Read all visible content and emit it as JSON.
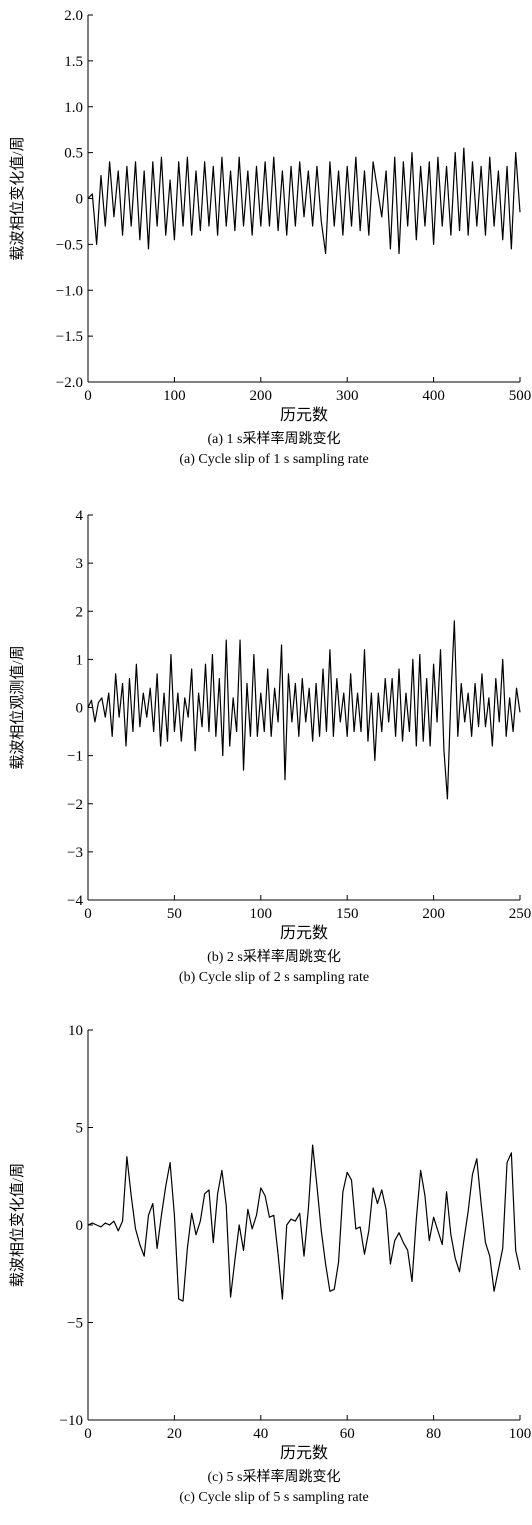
{
  "chart_data": [
    {
      "type": "line",
      "ylabel": "载波相位变化值/周",
      "xlabel": "历元数",
      "caption_cn": "(a) 1 s采样率周跳变化",
      "caption_en": "(a) Cycle slip of 1 s sampling rate",
      "xlim": [
        0,
        500
      ],
      "ylim": [
        -2,
        2
      ],
      "xticks": [
        0,
        100,
        200,
        300,
        400,
        500
      ],
      "yticks": [
        {
          "value": -2,
          "label": "−2.0"
        },
        {
          "value": -1.5,
          "label": "−1.5"
        },
        {
          "value": -1,
          "label": "−1.0"
        },
        {
          "value": -0.5,
          "label": "−0.5"
        },
        0,
        0.5,
        {
          "value": 1,
          "label": "1.0"
        },
        1.5,
        {
          "value": 2,
          "label": "2.0"
        }
      ],
      "x": [
        0,
        5,
        10,
        15,
        20,
        25,
        30,
        35,
        40,
        45,
        50,
        55,
        60,
        65,
        70,
        75,
        80,
        85,
        90,
        95,
        100,
        105,
        110,
        115,
        120,
        125,
        130,
        135,
        140,
        145,
        150,
        155,
        160,
        165,
        170,
        175,
        180,
        185,
        190,
        195,
        200,
        205,
        210,
        215,
        220,
        225,
        230,
        235,
        240,
        245,
        250,
        255,
        260,
        265,
        270,
        275,
        280,
        285,
        290,
        295,
        300,
        305,
        310,
        315,
        320,
        325,
        330,
        335,
        340,
        345,
        350,
        355,
        360,
        365,
        370,
        375,
        380,
        385,
        390,
        395,
        400,
        405,
        410,
        415,
        420,
        425,
        430,
        435,
        440,
        445,
        450,
        455,
        460,
        465,
        470,
        475,
        480,
        485,
        490,
        495,
        500
      ],
      "series": [
        {
          "color": "#000000",
          "values": [
            0,
            0.05,
            -0.5,
            0.25,
            -0.3,
            0.4,
            -0.2,
            0.3,
            -0.4,
            0.35,
            -0.3,
            0.4,
            -0.45,
            0.3,
            -0.55,
            0.4,
            -0.3,
            0.45,
            -0.4,
            0.2,
            -0.45,
            0.4,
            -0.3,
            0.45,
            -0.4,
            0.3,
            -0.35,
            0.4,
            -0.3,
            0.35,
            -0.4,
            0.45,
            -0.3,
            0.3,
            -0.35,
            0.45,
            -0.3,
            0.3,
            -0.4,
            0.35,
            -0.3,
            0.4,
            -0.3,
            0.45,
            -0.35,
            0.3,
            -0.4,
            0.35,
            -0.3,
            0.4,
            -0.2,
            0.3,
            -0.3,
            0.35,
            -0.25,
            -0.6,
            0.4,
            -0.3,
            0.3,
            -0.4,
            0.35,
            -0.3,
            0.45,
            -0.35,
            0.3,
            -0.4,
            0.4,
            0.1,
            -0.2,
            0.3,
            -0.55,
            0.45,
            -0.6,
            0.4,
            -0.3,
            0.5,
            -0.45,
            0.35,
            -0.3,
            0.4,
            -0.5,
            0.45,
            -0.3,
            0.35,
            -0.4,
            0.5,
            -0.35,
            0.55,
            -0.4,
            0.4,
            -0.3,
            0.35,
            -0.4,
            0.45,
            -0.3,
            0.3,
            -0.45,
            0.35,
            -0.55,
            0.5,
            -0.15
          ]
        }
      ]
    },
    {
      "type": "line",
      "ylabel": "载波相位观测值/周",
      "xlabel": "历元数",
      "caption_cn": "(b) 2 s采样率周跳变化",
      "caption_en": "(b) Cycle slip of 2 s sampling rate",
      "xlim": [
        0,
        250
      ],
      "ylim": [
        -4,
        4
      ],
      "xticks": [
        0,
        50,
        100,
        150,
        200,
        250
      ],
      "yticks": [
        {
          "value": -4,
          "label": "−4"
        },
        {
          "value": -3,
          "label": "−3"
        },
        {
          "value": -2,
          "label": "−2"
        },
        {
          "value": -1,
          "label": "−1"
        },
        0,
        1,
        2,
        3,
        4
      ],
      "x": [
        0,
        2,
        4,
        6,
        8,
        10,
        12,
        14,
        16,
        18,
        20,
        22,
        24,
        26,
        28,
        30,
        32,
        34,
        36,
        38,
        40,
        42,
        44,
        46,
        48,
        50,
        52,
        54,
        56,
        58,
        60,
        62,
        64,
        66,
        68,
        70,
        72,
        74,
        76,
        78,
        80,
        82,
        84,
        86,
        88,
        90,
        92,
        94,
        96,
        98,
        100,
        102,
        104,
        106,
        108,
        110,
        112,
        114,
        116,
        118,
        120,
        122,
        124,
        126,
        128,
        130,
        132,
        134,
        136,
        138,
        140,
        142,
        144,
        146,
        148,
        150,
        152,
        154,
        156,
        158,
        160,
        162,
        164,
        166,
        168,
        170,
        172,
        174,
        176,
        178,
        180,
        182,
        184,
        186,
        188,
        190,
        192,
        194,
        196,
        198,
        200,
        202,
        204,
        206,
        208,
        210,
        212,
        214,
        216,
        218,
        220,
        222,
        224,
        226,
        228,
        230,
        232,
        234,
        236,
        238,
        240,
        242,
        244,
        246,
        248,
        250
      ],
      "series": [
        {
          "color": "#000000",
          "values": [
            0,
            0.15,
            -0.3,
            0.1,
            0.2,
            -0.2,
            0.3,
            -0.6,
            0.7,
            -0.2,
            0.5,
            -0.8,
            0.6,
            -0.5,
            0.9,
            -0.4,
            0.3,
            -0.2,
            0.4,
            -0.5,
            0.7,
            -0.8,
            0.3,
            -0.7,
            1.1,
            -0.5,
            0.3,
            -0.7,
            0.2,
            -0.2,
            0.8,
            -0.9,
            0.3,
            -0.4,
            0.9,
            -0.5,
            1.1,
            -0.6,
            0.6,
            -1.0,
            1.4,
            -0.8,
            0.2,
            -0.5,
            1.4,
            -1.3,
            0.5,
            -0.6,
            1.1,
            -0.6,
            0.3,
            -0.5,
            0.8,
            -0.6,
            0.4,
            -0.3,
            1.3,
            -1.5,
            0.7,
            -0.3,
            0.5,
            -0.6,
            0.6,
            -0.3,
            0.4,
            -0.7,
            0.5,
            -0.6,
            0.8,
            -0.5,
            1.2,
            -0.6,
            0.6,
            -0.3,
            0.3,
            -0.6,
            0.7,
            -0.5,
            0.3,
            -0.5,
            1.2,
            -0.7,
            0.3,
            -1.1,
            0.3,
            -0.5,
            0.6,
            -0.3,
            0.6,
            -0.6,
            0.8,
            -0.7,
            0.3,
            -0.5,
            1.0,
            -0.8,
            1.1,
            -0.7,
            0.6,
            -0.8,
            0.9,
            -0.3,
            1.2,
            -0.9,
            -1.9,
            0.2,
            1.8,
            -0.6,
            0.5,
            -0.3,
            0.3,
            -0.6,
            0.5,
            -0.4,
            0.7,
            -0.4,
            0.2,
            -0.8,
            0.6,
            -0.3,
            1.0,
            -0.6,
            0.2,
            -0.5,
            0.4,
            -0.1
          ]
        }
      ]
    },
    {
      "type": "line",
      "ylabel": "载波相位变化值/周",
      "xlabel": "历元数",
      "caption_cn": "(c) 5 s采样率周跳变化",
      "caption_en": "(c) Cycle slip of 5 s sampling rate",
      "xlim": [
        0,
        100
      ],
      "ylim": [
        -10,
        10
      ],
      "xticks": [
        0,
        20,
        40,
        60,
        80,
        100
      ],
      "yticks": [
        {
          "value": -10,
          "label": "−10"
        },
        {
          "value": -5,
          "label": "−5"
        },
        0,
        5,
        10
      ],
      "x": [
        0,
        1,
        2,
        3,
        4,
        5,
        6,
        7,
        8,
        9,
        10,
        11,
        12,
        13,
        14,
        15,
        16,
        17,
        18,
        19,
        20,
        21,
        22,
        23,
        24,
        25,
        26,
        27,
        28,
        29,
        30,
        31,
        32,
        33,
        34,
        35,
        36,
        37,
        38,
        39,
        40,
        41,
        42,
        43,
        44,
        45,
        46,
        47,
        48,
        49,
        50,
        51,
        52,
        53,
        54,
        55,
        56,
        57,
        58,
        59,
        60,
        61,
        62,
        63,
        64,
        65,
        66,
        67,
        68,
        69,
        70,
        71,
        72,
        73,
        74,
        75,
        76,
        77,
        78,
        79,
        80,
        81,
        82,
        83,
        84,
        85,
        86,
        87,
        88,
        89,
        90,
        91,
        92,
        93,
        94,
        95,
        96,
        97,
        98,
        99,
        100
      ],
      "series": [
        {
          "color": "#000000",
          "values": [
            0,
            0.1,
            0,
            -0.1,
            0.1,
            0,
            0.2,
            -0.3,
            0.2,
            3.5,
            1.5,
            -0.2,
            -1.0,
            -1.6,
            0.5,
            1.1,
            -1.2,
            0.5,
            2.0,
            3.2,
            0.5,
            -3.8,
            -3.9,
            -1.2,
            0.6,
            -0.5,
            0.2,
            1.6,
            1.8,
            -0.9,
            1.6,
            2.8,
            1.0,
            -3.7,
            -1.8,
            0,
            -1.3,
            0.8,
            -0.2,
            0.5,
            1.9,
            1.5,
            0.4,
            0.5,
            -1.5,
            -3.8,
            0,
            0.3,
            0.2,
            0.6,
            -1.6,
            0.8,
            4.1,
            2.0,
            -0.3,
            -2.0,
            -3.4,
            -3.3,
            -1.9,
            1.7,
            2.7,
            2.3,
            -0.2,
            -0.1,
            -1.5,
            -0.3,
            1.9,
            1.1,
            1.8,
            0.8,
            -2.0,
            -0.8,
            -0.4,
            -0.9,
            -1.3,
            -2.9,
            0.3,
            2.8,
            1.5,
            -0.8,
            0.4,
            -0.3,
            -1.0,
            1.7,
            -0.5,
            -1.7,
            -2.4,
            -0.8,
            0.7,
            2.6,
            3.4,
            1.1,
            -0.9,
            -1.6,
            -3.4,
            -2.3,
            -1.2,
            3.2,
            3.7,
            -1.3,
            -2.3
          ]
        }
      ]
    }
  ]
}
